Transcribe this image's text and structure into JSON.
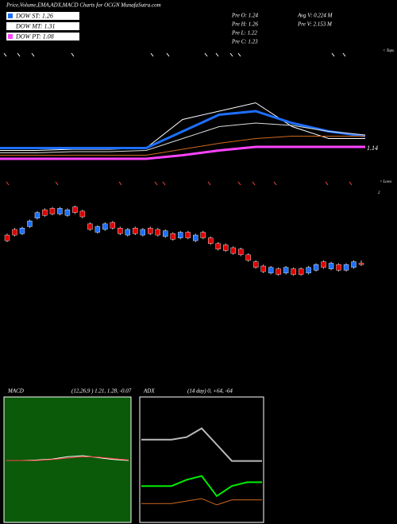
{
  "header": {
    "title": "Price,Volume,EMA,ADX,MACD Charts for OCGN MunafaSutra.com",
    "legend": [
      {
        "name": "DOW ST: 1.26",
        "color": "#1e6fff"
      },
      {
        "name": "DOW MT: 1.31",
        "color": "#ffffff"
      },
      {
        "name": "DOW PT: 1.08",
        "color": "#ff44ff"
      }
    ],
    "pre": [
      "Pre   O: 1.24",
      "Pre   H: 1.26",
      "Pre   L: 1.22",
      "Pre   C: 1.23"
    ],
    "volume": [
      "Avg V: 0.224  M",
      "Pre   V: 2.153 M"
    ]
  },
  "chart_data": [
    {
      "type": "line",
      "ylim": [
        1.0,
        1.8
      ],
      "annotations": [
        "1.14",
        "< Tops",
        "< Lows",
        "2"
      ],
      "series": [
        {
          "color": "#ffffff",
          "width": 1,
          "values": [
            1.11,
            1.11,
            1.12,
            1.12,
            1.13,
            1.37,
            1.44,
            1.51,
            1.31,
            1.21,
            1.21
          ]
        },
        {
          "color": "#1e6fff",
          "width": 3,
          "values": [
            1.13,
            1.13,
            1.13,
            1.13,
            1.13,
            1.27,
            1.41,
            1.44,
            1.34,
            1.27,
            1.23
          ]
        },
        {
          "color": "#dddddd",
          "width": 1,
          "values": [
            1.09,
            1.09,
            1.1,
            1.1,
            1.11,
            1.21,
            1.31,
            1.34,
            1.32,
            1.27,
            1.24
          ]
        },
        {
          "color": "#d2691e",
          "width": 1,
          "values": [
            1.07,
            1.07,
            1.07,
            1.07,
            1.07,
            1.12,
            1.17,
            1.21,
            1.23,
            1.23,
            1.23
          ]
        },
        {
          "color": "#ff44ff",
          "width": 3,
          "values": [
            1.04,
            1.04,
            1.04,
            1.04,
            1.04,
            1.07,
            1.11,
            1.14,
            1.14,
            1.14,
            1.14
          ]
        }
      ]
    },
    {
      "type": "candlestick",
      "ylim": [
        1.0,
        1.7
      ],
      "up_color": "#1e6fff",
      "down_color": "#e00000",
      "open": [
        1.44,
        1.48,
        1.45,
        1.5,
        1.56,
        1.62,
        1.63,
        1.59,
        1.58,
        1.64,
        1.61,
        1.52,
        1.46,
        1.48,
        1.53,
        1.49,
        1.44,
        1.49,
        1.44,
        1.49,
        1.48,
        1.43,
        1.45,
        1.42,
        1.46,
        1.4,
        1.46,
        1.42,
        1.38,
        1.37,
        1.35,
        1.34,
        1.3,
        1.25,
        1.22,
        1.17,
        1.2,
        1.17,
        1.2,
        1.2,
        1.17,
        1.19,
        1.25,
        1.2,
        1.23,
        1.19,
        1.21,
        1.24
      ],
      "high": [
        1.45,
        1.49,
        1.5,
        1.55,
        1.61,
        1.63,
        1.64,
        1.64,
        1.63,
        1.65,
        1.62,
        1.53,
        1.51,
        1.53,
        1.54,
        1.5,
        1.49,
        1.5,
        1.49,
        1.5,
        1.49,
        1.48,
        1.46,
        1.47,
        1.47,
        1.45,
        1.47,
        1.43,
        1.39,
        1.38,
        1.36,
        1.35,
        1.31,
        1.26,
        1.23,
        1.22,
        1.21,
        1.22,
        1.21,
        1.21,
        1.22,
        1.24,
        1.26,
        1.25,
        1.24,
        1.24,
        1.26,
        1.26
      ],
      "low": [
        1.39,
        1.43,
        1.44,
        1.49,
        1.55,
        1.57,
        1.58,
        1.58,
        1.57,
        1.59,
        1.56,
        1.47,
        1.45,
        1.47,
        1.48,
        1.44,
        1.43,
        1.44,
        1.43,
        1.44,
        1.43,
        1.42,
        1.4,
        1.41,
        1.41,
        1.39,
        1.41,
        1.37,
        1.33,
        1.32,
        1.3,
        1.29,
        1.25,
        1.2,
        1.17,
        1.16,
        1.15,
        1.16,
        1.15,
        1.15,
        1.16,
        1.18,
        1.2,
        1.19,
        1.18,
        1.18,
        1.2,
        1.22
      ],
      "close": [
        1.4,
        1.44,
        1.49,
        1.54,
        1.6,
        1.58,
        1.59,
        1.63,
        1.62,
        1.6,
        1.57,
        1.48,
        1.5,
        1.52,
        1.49,
        1.45,
        1.48,
        1.45,
        1.48,
        1.45,
        1.44,
        1.47,
        1.41,
        1.46,
        1.42,
        1.44,
        1.42,
        1.38,
        1.34,
        1.33,
        1.31,
        1.3,
        1.26,
        1.21,
        1.18,
        1.21,
        1.16,
        1.21,
        1.16,
        1.16,
        1.21,
        1.23,
        1.21,
        1.24,
        1.19,
        1.23,
        1.25,
        1.23
      ]
    },
    {
      "type": "line",
      "title": "MACD",
      "subtitle": "(12,26,9 ) 1.21, 1.28, -0.07",
      "background": "#0a5a0a",
      "ylim": [
        -1,
        1
      ],
      "series": [
        {
          "color": "#ffffff",
          "width": 1,
          "values": [
            0,
            0,
            0.01,
            0.03,
            0.08,
            0.1,
            0.06,
            0.02,
            0
          ]
        },
        {
          "color": "#ff4040",
          "width": 1,
          "values": [
            0,
            0,
            0,
            0.02,
            0.05,
            0.08,
            0.07,
            0.04,
            0.01
          ]
        }
      ]
    },
    {
      "type": "line",
      "title": "ADX",
      "subtitle": "(14 day) 0, +64, -64",
      "ylim": [
        0,
        100
      ],
      "series": [
        {
          "color": "#bbbbbb",
          "width": 2,
          "values": [
            66,
            66,
            66,
            68,
            75,
            62,
            49,
            49,
            49
          ]
        },
        {
          "color": "#00ee00",
          "width": 2,
          "values": [
            29,
            29,
            29,
            34,
            37,
            21,
            29,
            32,
            32
          ]
        },
        {
          "color": "#d2691e",
          "width": 1,
          "values": [
            15,
            15,
            15,
            17,
            19,
            14,
            18,
            18,
            18
          ]
        }
      ]
    }
  ]
}
